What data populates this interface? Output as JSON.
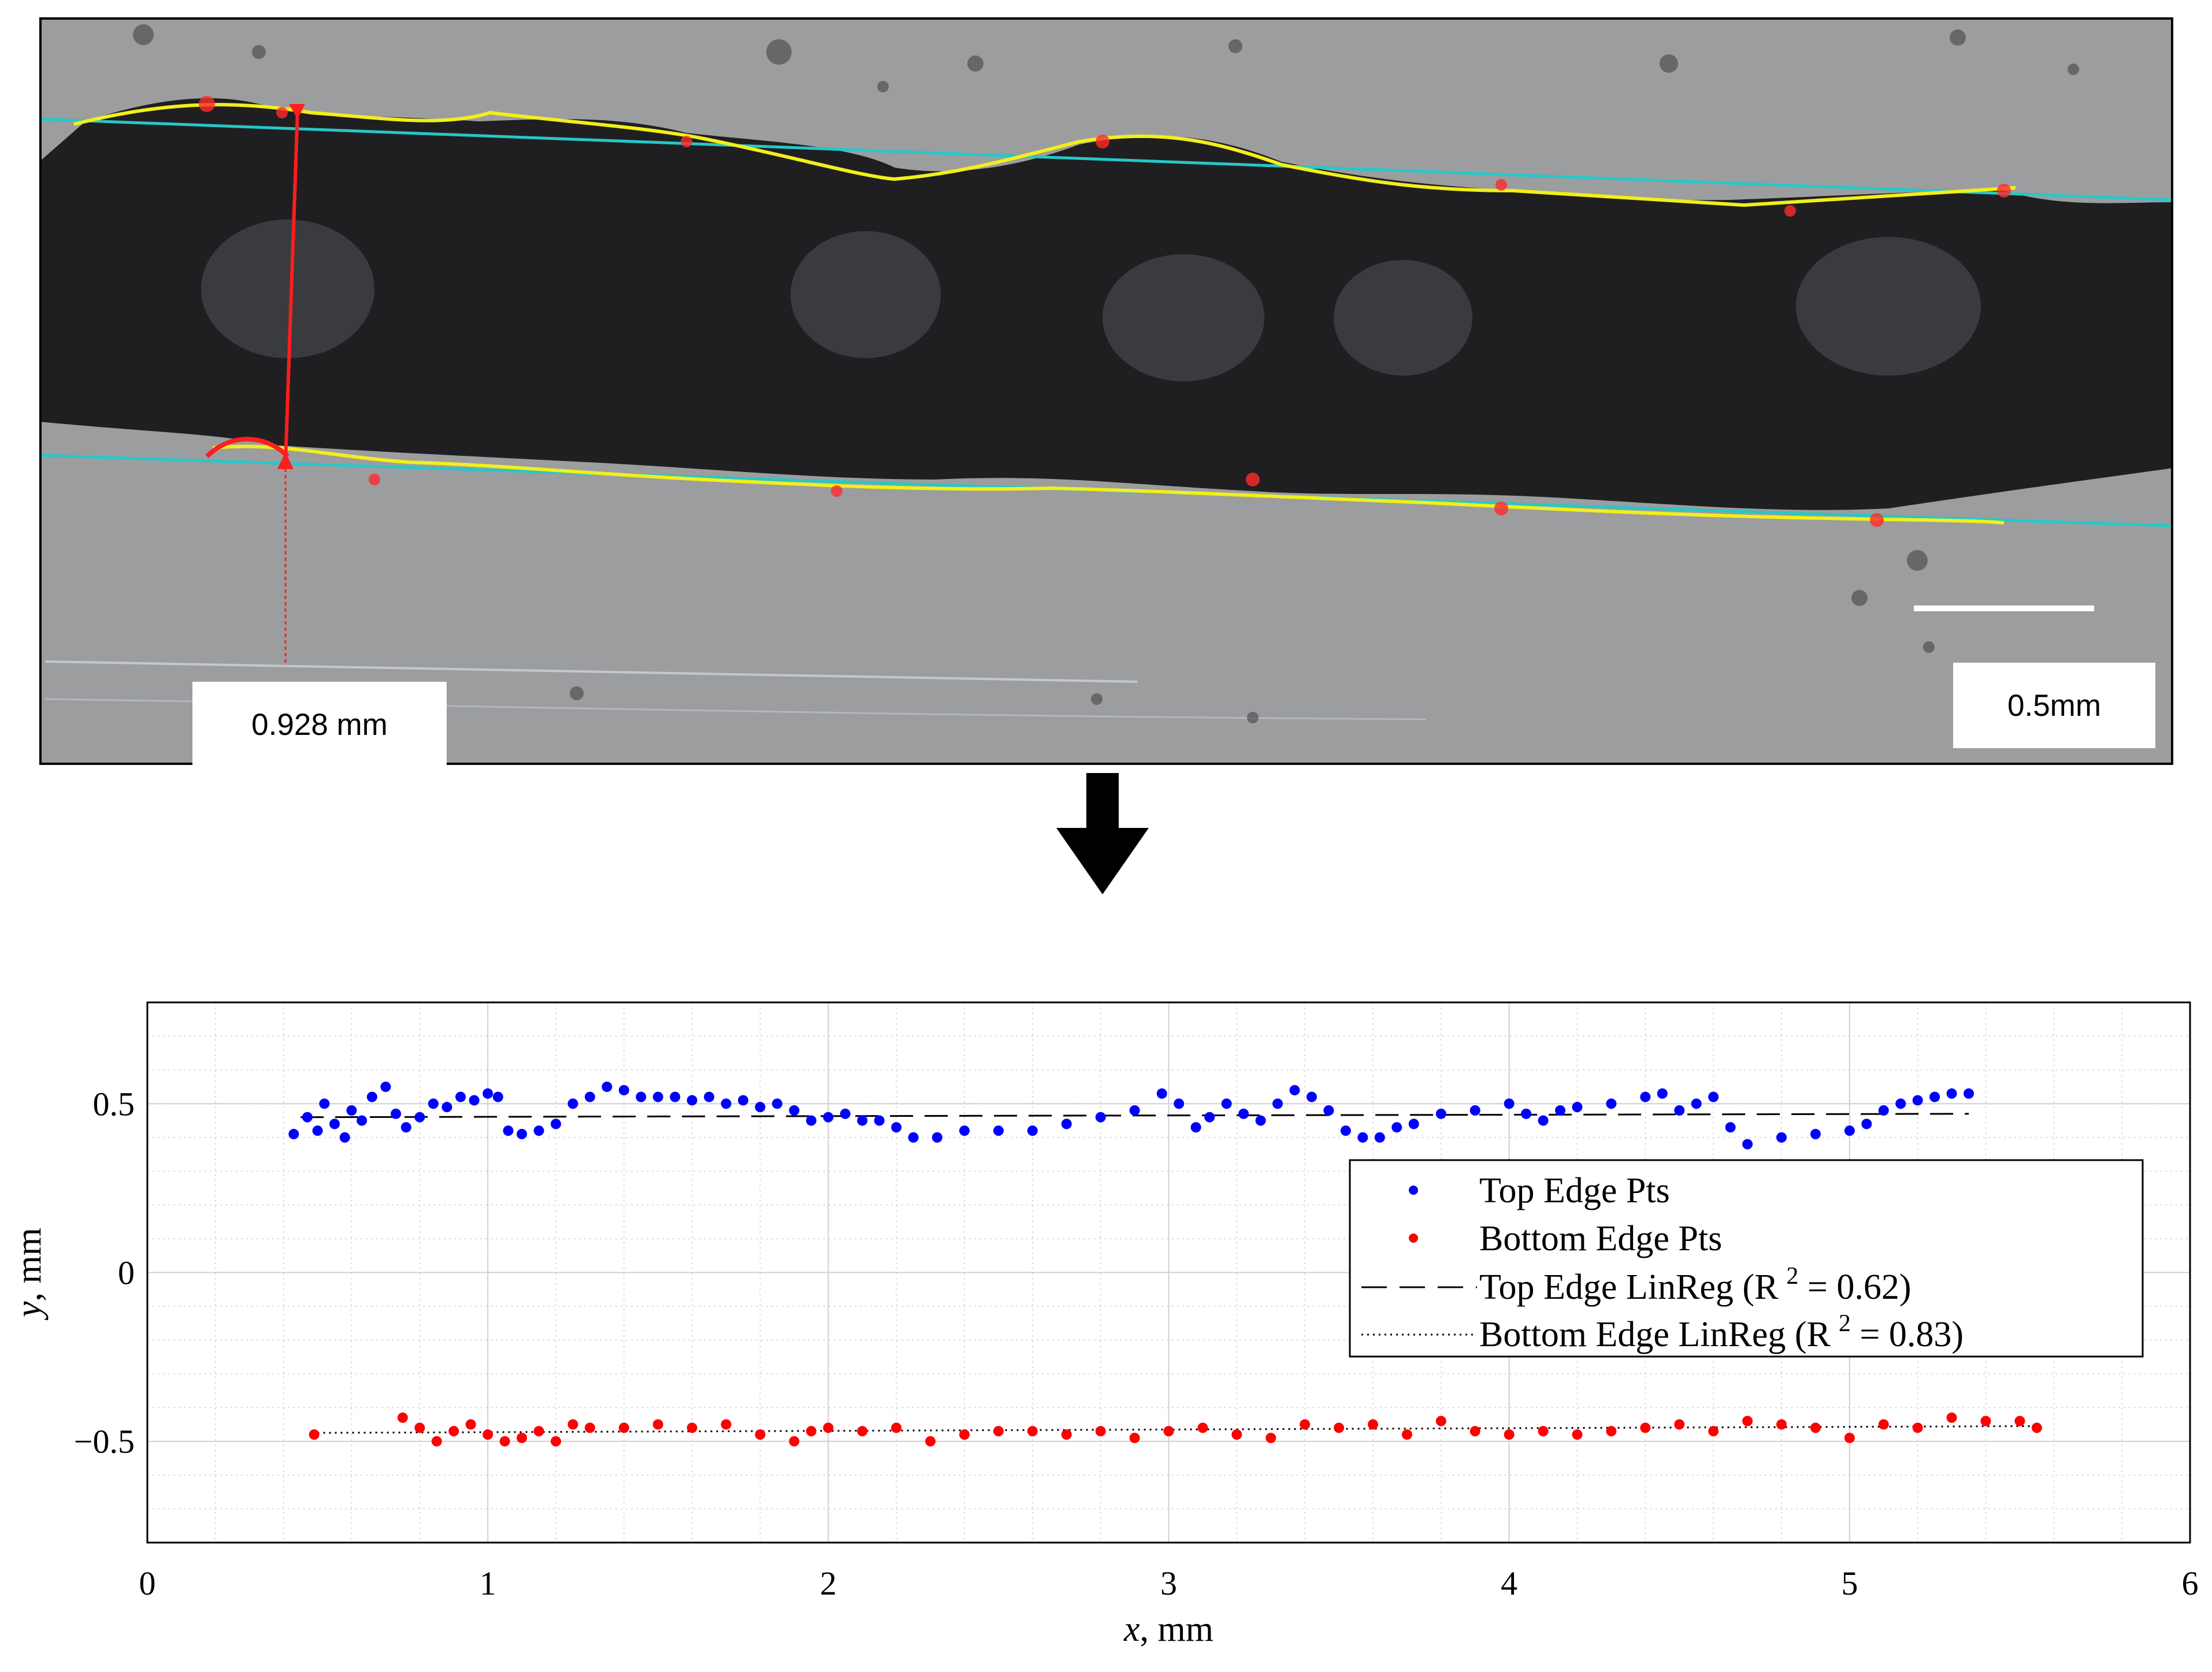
{
  "photo": {
    "thickness_label": "0.928 mm",
    "scale_label": "0.5mm",
    "colors": {
      "background": "#9c9d9f",
      "sample": "#1f1f21",
      "edge_detect": "#f2ef1a",
      "edge_outlier": "#ff2a2a",
      "regression_line": "#27c7c7",
      "measure": "#ff1e1e",
      "scale_bar": "#ffffff"
    }
  },
  "arrow": {
    "icon": "down-arrow-icon",
    "color": "#000000"
  },
  "chart_data": {
    "type": "scatter",
    "xlabel_var": "x",
    "xlabel_unit": ", mm",
    "ylabel_var": "y",
    "ylabel_unit": ", mm",
    "xlim": [
      0,
      6
    ],
    "ylim": [
      -0.8,
      0.8
    ],
    "xticks": [
      {
        "v": 0,
        "label": "0"
      },
      {
        "v": 1,
        "label": "1"
      },
      {
        "v": 2,
        "label": "2"
      },
      {
        "v": 3,
        "label": "3"
      },
      {
        "v": 4,
        "label": "4"
      },
      {
        "v": 5,
        "label": "5"
      },
      {
        "v": 6,
        "label": "6"
      }
    ],
    "yticks": [
      {
        "v": 0.5,
        "label": "0.5"
      },
      {
        "v": 0,
        "label": "0"
      },
      {
        "v": -0.5,
        "label": "−0.5"
      }
    ],
    "grid": "major and minor",
    "legend_position": "right, middle",
    "series": [
      {
        "name": "Top Edge Pts",
        "color": "#0000ff",
        "marker": "dot",
        "x": [
          0.43,
          0.47,
          0.5,
          0.52,
          0.55,
          0.58,
          0.6,
          0.63,
          0.66,
          0.7,
          0.73,
          0.76,
          0.8,
          0.84,
          0.88,
          0.92,
          0.96,
          1.0,
          1.03,
          1.06,
          1.1,
          1.15,
          1.2,
          1.25,
          1.3,
          1.35,
          1.4,
          1.45,
          1.5,
          1.55,
          1.6,
          1.65,
          1.7,
          1.75,
          1.8,
          1.85,
          1.9,
          1.95,
          2.0,
          2.05,
          2.1,
          2.15,
          2.2,
          2.25,
          2.32,
          2.4,
          2.5,
          2.6,
          2.7,
          2.8,
          2.9,
          2.98,
          3.03,
          3.08,
          3.12,
          3.17,
          3.22,
          3.27,
          3.32,
          3.37,
          3.42,
          3.47,
          3.52,
          3.57,
          3.62,
          3.67,
          3.72,
          3.8,
          3.9,
          4.0,
          4.05,
          4.1,
          4.15,
          4.2,
          4.3,
          4.4,
          4.45,
          4.5,
          4.55,
          4.6,
          4.65,
          4.7,
          4.8,
          4.9,
          5.0,
          5.05,
          5.1,
          5.15,
          5.2,
          5.25,
          5.3,
          5.35
        ],
        "y": [
          0.41,
          0.46,
          0.42,
          0.5,
          0.44,
          0.4,
          0.48,
          0.45,
          0.52,
          0.55,
          0.47,
          0.43,
          0.46,
          0.5,
          0.49,
          0.52,
          0.51,
          0.53,
          0.52,
          0.42,
          0.41,
          0.42,
          0.44,
          0.5,
          0.52,
          0.55,
          0.54,
          0.52,
          0.52,
          0.52,
          0.51,
          0.52,
          0.5,
          0.51,
          0.49,
          0.5,
          0.48,
          0.45,
          0.46,
          0.47,
          0.45,
          0.45,
          0.43,
          0.4,
          0.4,
          0.42,
          0.42,
          0.42,
          0.44,
          0.46,
          0.48,
          0.53,
          0.5,
          0.43,
          0.46,
          0.5,
          0.47,
          0.45,
          0.5,
          0.54,
          0.52,
          0.48,
          0.42,
          0.4,
          0.4,
          0.43,
          0.44,
          0.47,
          0.48,
          0.5,
          0.47,
          0.45,
          0.48,
          0.49,
          0.5,
          0.52,
          0.53,
          0.48,
          0.5,
          0.52,
          0.43,
          0.38,
          0.4,
          0.41,
          0.42,
          0.44,
          0.48,
          0.5,
          0.51,
          0.52,
          0.53,
          0.53
        ]
      },
      {
        "name": "Bottom Edge Pts",
        "color": "#ff0000",
        "marker": "dot",
        "x": [
          0.49,
          0.75,
          0.8,
          0.85,
          0.9,
          0.95,
          1.0,
          1.05,
          1.1,
          1.15,
          1.2,
          1.25,
          1.3,
          1.4,
          1.5,
          1.6,
          1.7,
          1.8,
          1.9,
          1.95,
          2.0,
          2.1,
          2.2,
          2.3,
          2.4,
          2.5,
          2.6,
          2.7,
          2.8,
          2.9,
          3.0,
          3.1,
          3.2,
          3.3,
          3.4,
          3.5,
          3.6,
          3.7,
          3.8,
          3.9,
          4.0,
          4.1,
          4.2,
          4.3,
          4.4,
          4.5,
          4.6,
          4.7,
          4.8,
          4.9,
          5.0,
          5.1,
          5.2,
          5.3,
          5.4,
          5.5,
          5.55
        ],
        "y": [
          -0.48,
          -0.43,
          -0.46,
          -0.5,
          -0.47,
          -0.45,
          -0.48,
          -0.5,
          -0.49,
          -0.47,
          -0.5,
          -0.45,
          -0.46,
          -0.46,
          -0.45,
          -0.46,
          -0.45,
          -0.48,
          -0.5,
          -0.47,
          -0.46,
          -0.47,
          -0.46,
          -0.5,
          -0.48,
          -0.47,
          -0.47,
          -0.48,
          -0.47,
          -0.49,
          -0.47,
          -0.46,
          -0.48,
          -0.49,
          -0.45,
          -0.46,
          -0.45,
          -0.48,
          -0.44,
          -0.47,
          -0.48,
          -0.47,
          -0.48,
          -0.47,
          -0.46,
          -0.45,
          -0.47,
          -0.44,
          -0.45,
          -0.46,
          -0.49,
          -0.45,
          -0.46,
          -0.43,
          -0.44,
          -0.44,
          -0.46
        ]
      },
      {
        "name": "Top Edge LinReg",
        "r2_label": "R",
        "r2_sup": "2",
        "r2_value": " = 0.62)",
        "color": "#000000",
        "style": "dashed",
        "x": [
          0.45,
          5.35
        ],
        "y": [
          0.46,
          0.47
        ]
      },
      {
        "name": "Bottom Edge LinReg",
        "r2_label": "R",
        "r2_sup": "2",
        "r2_value": " = 0.83)",
        "color": "#000000",
        "style": "dotted",
        "x": [
          0.5,
          5.55
        ],
        "y": [
          -0.475,
          -0.455
        ]
      }
    ]
  }
}
